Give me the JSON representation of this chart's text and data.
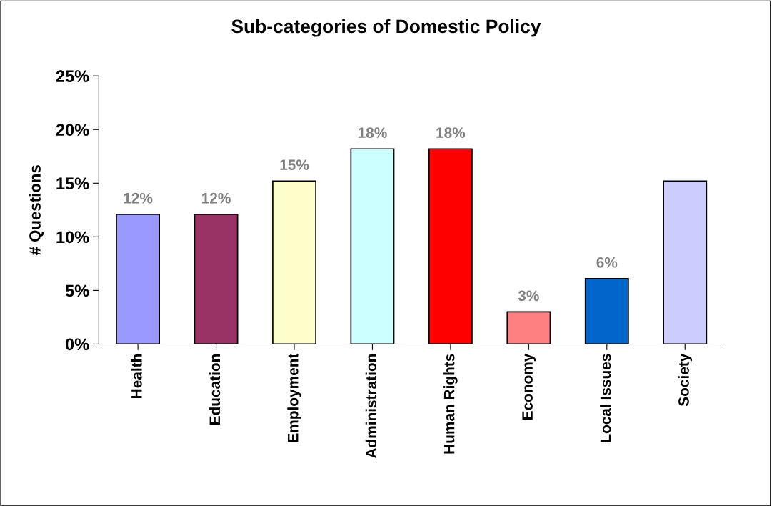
{
  "chart_data": {
    "type": "bar",
    "title": "Sub-categories of Domestic Policy",
    "ylabel": "# Questions",
    "categories": [
      "Health",
      "Education",
      "Employment",
      "Administration",
      "Human Rights",
      "Economy",
      "Local Issues",
      "Society"
    ],
    "values": [
      12.1,
      12.1,
      15.2,
      18.2,
      18.2,
      3.0,
      6.1,
      15.2
    ],
    "value_labels": [
      "12%",
      "12%",
      "15%",
      "18%",
      "18%",
      "3%",
      "6%",
      null
    ],
    "colors": [
      "#9999ff",
      "#993366",
      "#ffffcc",
      "#ccffff",
      "#ff0000",
      "#ff8080",
      "#0066cc",
      "#ccccff"
    ],
    "ylim": [
      0,
      25
    ],
    "yticks": [
      {
        "value": 0,
        "label": "0%"
      },
      {
        "value": 5,
        "label": "5%"
      },
      {
        "value": 10,
        "label": "10%"
      },
      {
        "value": 15,
        "label": "15%"
      },
      {
        "value": 20,
        "label": "20%"
      },
      {
        "value": 25,
        "label": "25%"
      }
    ],
    "grid": false,
    "legend": false
  }
}
